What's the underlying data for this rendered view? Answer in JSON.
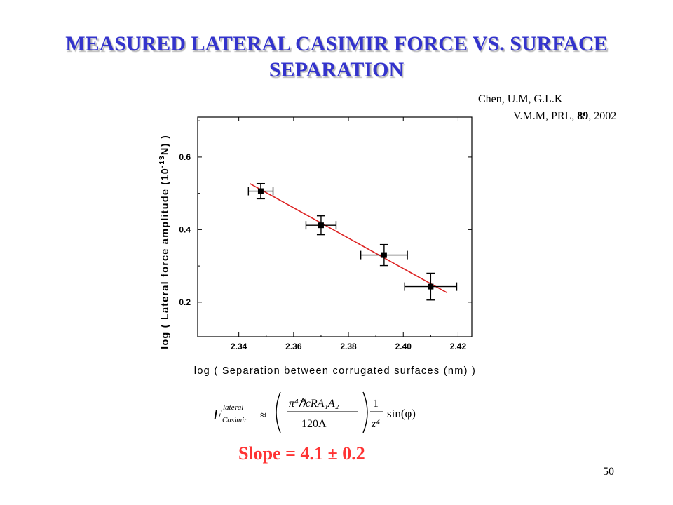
{
  "slide": {
    "title": "MEASURED LATERAL CASIMIR FORCE VS. SURFACE SEPARATION",
    "citation_line1": "Chen, U.M, G.L.K",
    "citation_line2_prefix": "V.M.M, PRL, ",
    "citation_volume": "89",
    "citation_line2_suffix": ", 2002",
    "slope_text": "Slope = 4.1 ± 0.2",
    "page_number": "50",
    "formula": {
      "lhs_base": "F",
      "lhs_sup": "lateral",
      "lhs_sub": "Casimir",
      "approx": "≈",
      "numerator": "π⁴ℏcRA₁A₂",
      "denominator": "120Λ",
      "frac2_num": "1",
      "frac2_den": "z⁴",
      "tail": "sin(φ)"
    }
  },
  "colors": {
    "title": "#3333cc",
    "fit_line": "#dd2222",
    "slope_text": "#ff3333"
  },
  "chart_data": {
    "type": "scatter",
    "xlabel": "log ( Separation between corrugated surfaces (nm) )",
    "ylabel_main": "log ( Lateral force amplitude (10",
    "ylabel_sup": "-13",
    "ylabel_end": "N) )",
    "xlim": [
      2.325,
      2.425
    ],
    "ylim": [
      0.105,
      0.71
    ],
    "xticks": [
      2.34,
      2.36,
      2.38,
      2.4,
      2.42
    ],
    "xtick_labels": [
      "2.34",
      "2.36",
      "2.38",
      "2.40",
      "2.42"
    ],
    "yticks": [
      0.2,
      0.4,
      0.6
    ],
    "ytick_labels": [
      "0.2",
      "0.4",
      "0.6"
    ],
    "points": [
      {
        "x": 2.348,
        "y": 0.506,
        "xerr": 0.0045,
        "yerr": 0.021
      },
      {
        "x": 2.37,
        "y": 0.412,
        "xerr": 0.0055,
        "yerr": 0.026
      },
      {
        "x": 2.393,
        "y": 0.33,
        "xerr": 0.0085,
        "yerr": 0.029
      },
      {
        "x": 2.41,
        "y": 0.243,
        "xerr": 0.0095,
        "yerr": 0.037
      }
    ],
    "fit": {
      "x": [
        2.344,
        2.416
      ],
      "y": [
        0.527,
        0.226
      ]
    }
  }
}
